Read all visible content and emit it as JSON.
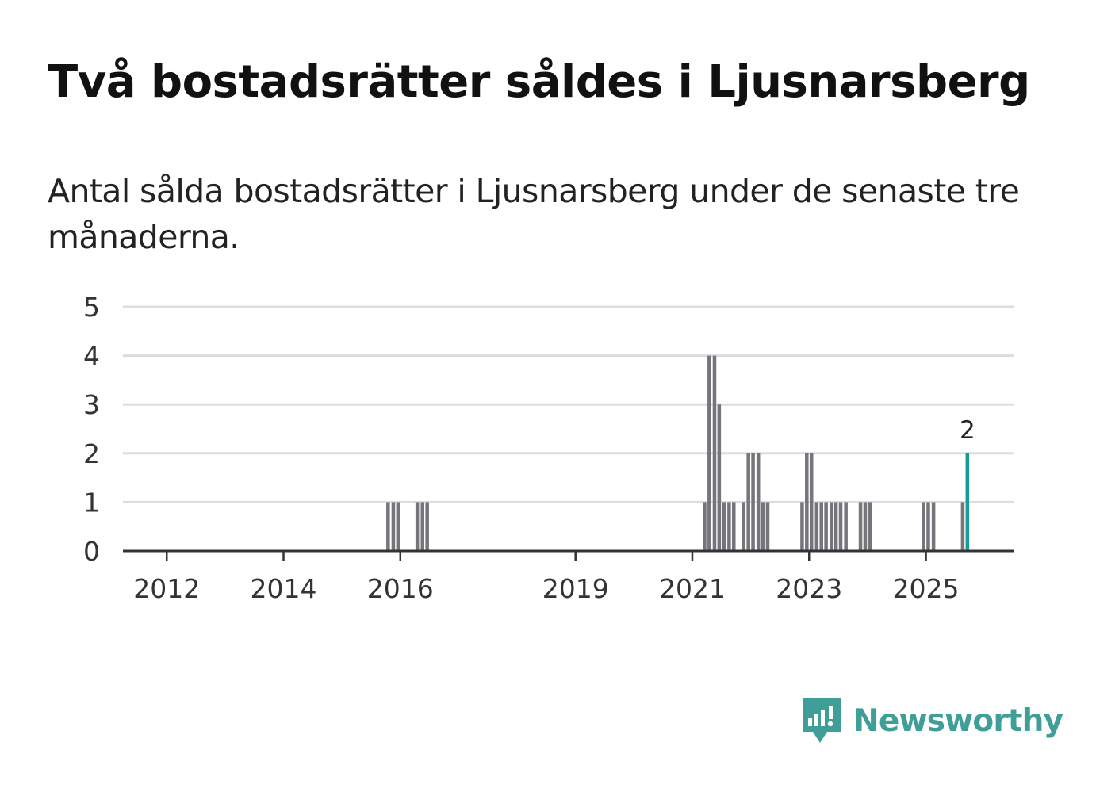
{
  "title": "Två bostadsrätter såldes i Ljusnarsberg",
  "subtitle": "Antal sålda bostadsrätter i Ljusnarsberg under de senaste tre månaderna.",
  "colors": {
    "bar": "#76757b",
    "highlight": "#1a9a99",
    "grid": "#dddddd",
    "axis": "#333333",
    "brand": "#3f9e98"
  },
  "brand": {
    "name": "Newsworthy",
    "icon": "newsworthy-logo-icon"
  },
  "chart_data": {
    "type": "bar",
    "title": "Antal sålda bostadsrätter i Ljusnarsberg",
    "xlabel": "",
    "ylabel": "",
    "ylim": [
      0,
      5
    ],
    "yticks": [
      0,
      1,
      2,
      3,
      4,
      5
    ],
    "xlim": [
      2011.25,
      2026.5
    ],
    "xticks": [
      {
        "value": 2012.0,
        "label": "2012"
      },
      {
        "value": 2014.0,
        "label": "2014"
      },
      {
        "value": 2016.0,
        "label": "2016"
      },
      {
        "value": 2019.0,
        "label": "2019"
      },
      {
        "value": 2021.0,
        "label": "2021"
      },
      {
        "value": 2023.0,
        "label": "2023"
      },
      {
        "value": 2025.0,
        "label": "2025"
      }
    ],
    "bar_width": 0.0833,
    "series": [
      {
        "name": "Sålda bostadsrätter",
        "points": [
          {
            "x": 2015.79,
            "value": 1
          },
          {
            "x": 2015.88,
            "value": 1
          },
          {
            "x": 2015.96,
            "value": 1
          },
          {
            "x": 2016.29,
            "value": 1
          },
          {
            "x": 2016.38,
            "value": 1
          },
          {
            "x": 2016.46,
            "value": 1
          },
          {
            "x": 2021.21,
            "value": 1
          },
          {
            "x": 2021.29,
            "value": 4
          },
          {
            "x": 2021.38,
            "value": 4
          },
          {
            "x": 2021.46,
            "value": 3
          },
          {
            "x": 2021.54,
            "value": 1
          },
          {
            "x": 2021.63,
            "value": 1
          },
          {
            "x": 2021.71,
            "value": 1
          },
          {
            "x": 2021.88,
            "value": 1
          },
          {
            "x": 2021.96,
            "value": 2
          },
          {
            "x": 2022.04,
            "value": 2
          },
          {
            "x": 2022.13,
            "value": 2
          },
          {
            "x": 2022.21,
            "value": 1
          },
          {
            "x": 2022.29,
            "value": 1
          },
          {
            "x": 2022.88,
            "value": 1
          },
          {
            "x": 2022.96,
            "value": 2
          },
          {
            "x": 2023.04,
            "value": 2
          },
          {
            "x": 2023.13,
            "value": 1
          },
          {
            "x": 2023.21,
            "value": 1
          },
          {
            "x": 2023.29,
            "value": 1
          },
          {
            "x": 2023.38,
            "value": 1
          },
          {
            "x": 2023.46,
            "value": 1
          },
          {
            "x": 2023.54,
            "value": 1
          },
          {
            "x": 2023.63,
            "value": 1
          },
          {
            "x": 2023.88,
            "value": 1
          },
          {
            "x": 2023.96,
            "value": 1
          },
          {
            "x": 2024.04,
            "value": 1
          },
          {
            "x": 2024.96,
            "value": 1
          },
          {
            "x": 2025.04,
            "value": 1
          },
          {
            "x": 2025.13,
            "value": 1
          },
          {
            "x": 2025.63,
            "value": 1
          },
          {
            "x": 2025.71,
            "value": 2,
            "highlight": true,
            "label": "2"
          }
        ]
      }
    ]
  }
}
